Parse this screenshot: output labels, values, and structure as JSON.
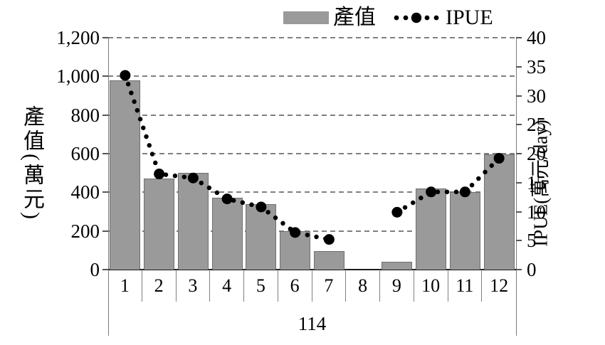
{
  "legend": {
    "bar_label": "產值",
    "line_label": "IPUE"
  },
  "axes": {
    "left": {
      "title": "產值(萬元)",
      "ticks": [
        "1,200",
        "1,000",
        "800",
        "600",
        "400",
        "200",
        "0"
      ]
    },
    "right": {
      "title": "IPUE(萬元/day)",
      "ticks": [
        "40",
        "35",
        "30",
        "25",
        "20",
        "15",
        "10",
        "5",
        "0"
      ]
    },
    "x": {
      "labels": [
        "1",
        "2",
        "3",
        "4",
        "5",
        "6",
        "7",
        "8",
        "9",
        "10",
        "11",
        "12"
      ],
      "group_label": "114"
    }
  },
  "colors": {
    "bar_fill": "#9a9a9a",
    "bar_border": "#6f6f6f",
    "line_color": "#000000",
    "grid_color": "#7f7f7f",
    "axis_color": "#1a1a1a"
  },
  "chart_data": {
    "type": "bar",
    "subtype": "bar+dotted-line-combo",
    "categories": [
      "1",
      "2",
      "3",
      "4",
      "5",
      "6",
      "7",
      "8",
      "9",
      "10",
      "11",
      "12"
    ],
    "x_group_label": "114",
    "series": [
      {
        "name": "產值",
        "type": "bar",
        "axis": "left",
        "values": [
          980,
          470,
          500,
          370,
          340,
          200,
          95,
          0,
          40,
          420,
          400,
          595
        ]
      },
      {
        "name": "IPUE",
        "type": "line",
        "style": "dotted",
        "axis": "right",
        "values": [
          33.5,
          16.5,
          15.8,
          12.2,
          10.8,
          6.4,
          5.2,
          null,
          9.9,
          13.4,
          13.4,
          19.2
        ]
      }
    ],
    "left_axis": {
      "label": "產值(萬元)",
      "range": [
        0,
        1200
      ],
      "tick_step": 200
    },
    "right_axis": {
      "label": "IPUE(萬元/day)",
      "range": [
        0,
        40
      ],
      "tick_step": 5
    },
    "grid": "horizontal-dashed",
    "legend_position": "top-center",
    "notes": "IPUE line broken at month 8; no bar for month 8"
  }
}
